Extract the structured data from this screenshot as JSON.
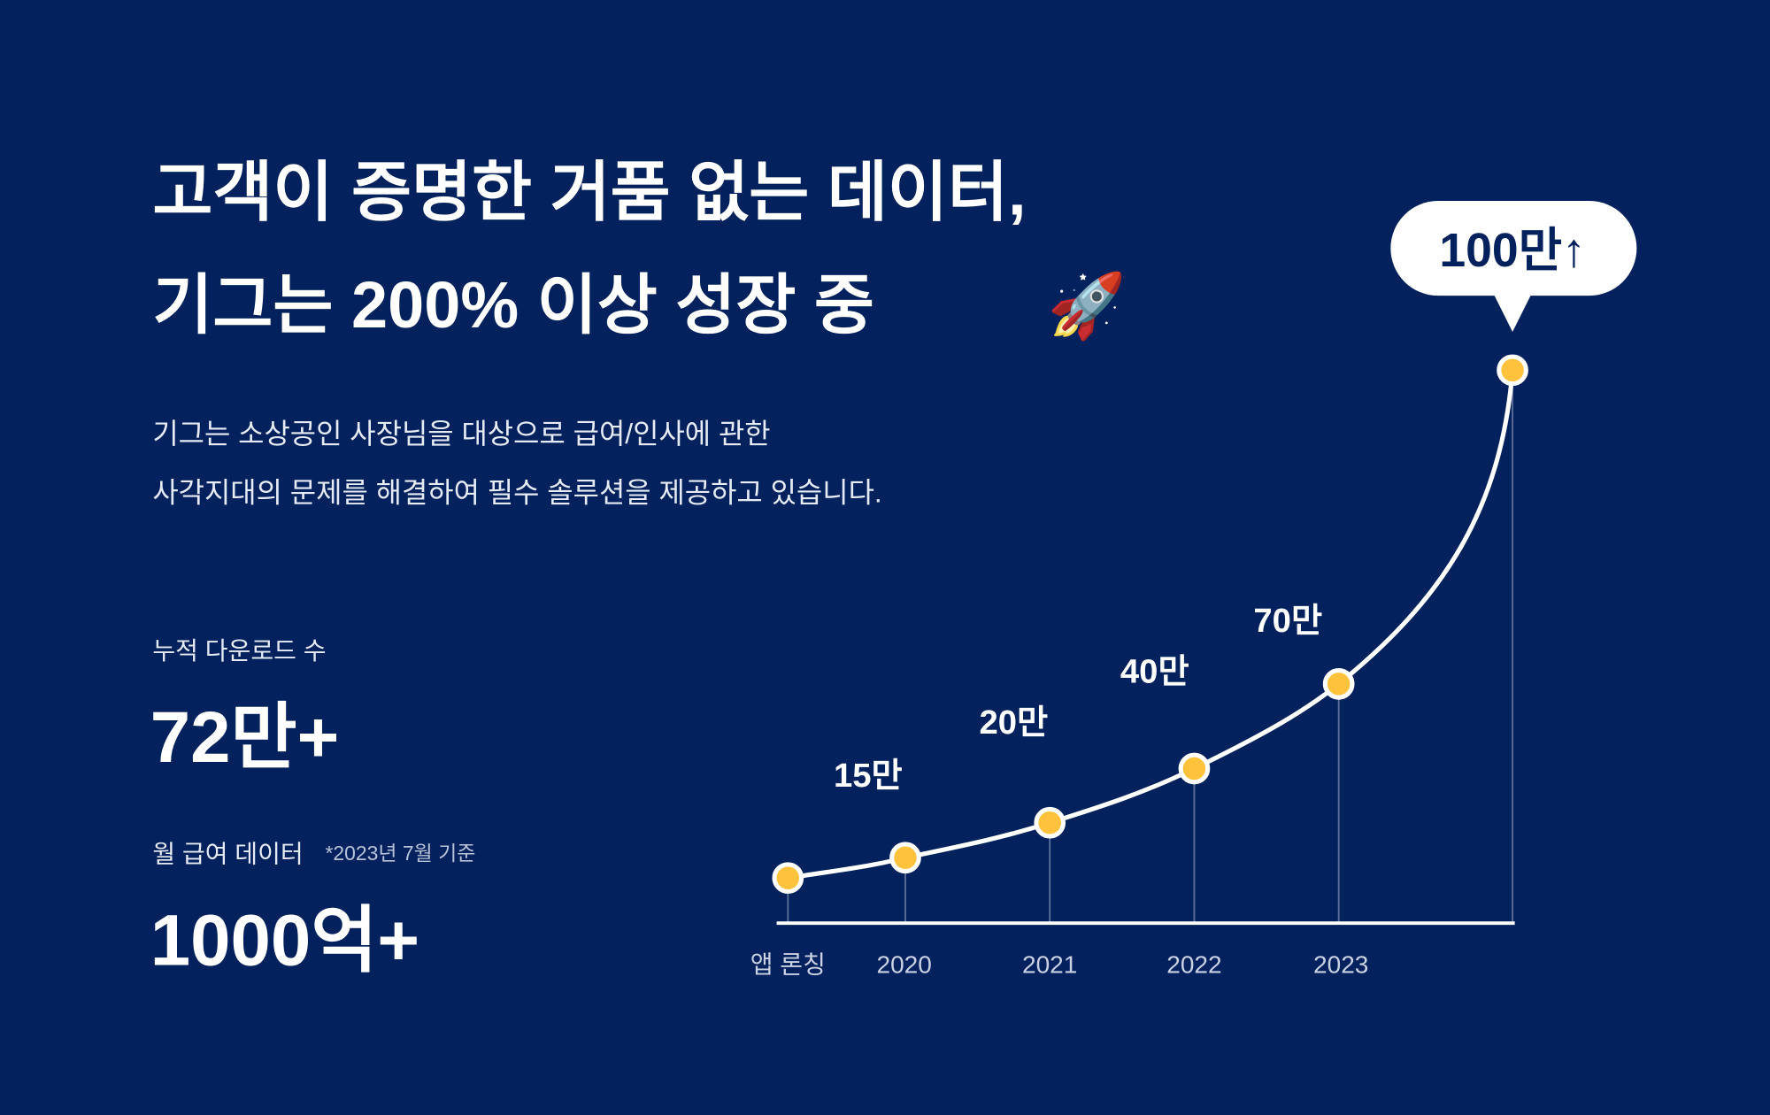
{
  "headline": {
    "line1": "고객이 증명한 거품 없는 데이터,",
    "line2": "기그는 200% 이상 성장 중",
    "emoji": "🚀"
  },
  "description": {
    "line1": "기그는 소상공인 사장님을 대상으로 급여/인사에 관한",
    "line2": "사각지대의 문제를 해결하여 필수 솔루션을 제공하고 있습니다."
  },
  "stats": [
    {
      "label": "누적 다운로드 수",
      "value": "72만+"
    },
    {
      "label": "월 급여 데이터",
      "note": "*2023년 7월 기준",
      "value": "1000억+"
    }
  ],
  "growth_chart": {
    "x_labels": [
      "앱 론칭",
      "2020",
      "2021",
      "2022",
      "2023"
    ],
    "point_labels": [
      "15만",
      "20만",
      "40만",
      "70만"
    ],
    "callout": "100만↑"
  }
}
